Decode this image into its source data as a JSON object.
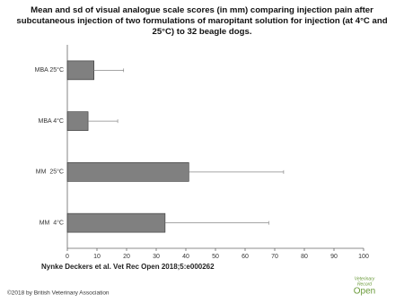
{
  "chart_data": {
    "type": "bar",
    "orientation": "horizontal",
    "title": "Mean and sd of visual analogue scale scores (in mm) comparing injection pain after subcutaneous injection of two formulations of maropitant solution for injection (at 4°C and 25°C) to 32 beagle dogs.",
    "categories": [
      "MBA 25°C",
      "MBA 4°C",
      "MM  25°C",
      "MM  4°C"
    ],
    "series": [
      {
        "color": "#808080",
        "values": [
          9,
          7,
          41,
          33
        ],
        "errors": [
          10,
          10,
          32,
          35
        ]
      }
    ],
    "xlim": [
      0,
      100
    ],
    "xticks": [
      0,
      10,
      20,
      30,
      40,
      50,
      60,
      70,
      80,
      90,
      100
    ]
  },
  "citation": "Nynke Deckers et al. Vet Rec Open 2018;5:e000262",
  "copyright": "©2018 by British Veterinary Association",
  "logo": [
    "Veterinary",
    "Record",
    "Open"
  ]
}
